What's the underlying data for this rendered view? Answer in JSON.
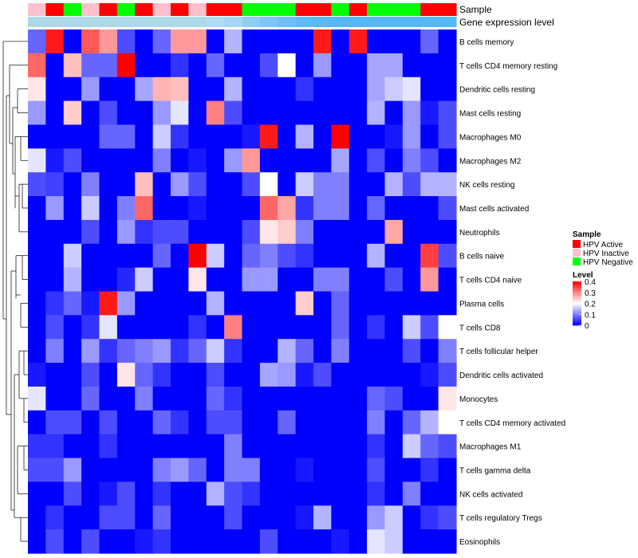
{
  "chart_data": {
    "type": "heatmap",
    "title": "",
    "annotation_tracks": [
      "Sample",
      "Gene expression level"
    ],
    "sample_groups": [
      "Inactive",
      "Active",
      "Negative",
      "Inactive",
      "Active",
      "Negative",
      "Active",
      "Inactive",
      "Active",
      "Inactive",
      "Active",
      "Active",
      "Negative",
      "Negative",
      "Negative",
      "Active",
      "Active",
      "Negative",
      "Active",
      "Negative",
      "Negative",
      "Negative",
      "Active",
      "Active"
    ],
    "sample_colors": {
      "Active": "#ff0000",
      "Inactive": "#ffc0cb",
      "Negative": "#00ff00"
    },
    "expression_track_colors": [
      "#add8e6",
      "#add8e6",
      "#add8e6",
      "#add8e6",
      "#add8e6",
      "#add8e6",
      "#add8e6",
      "#add8e6",
      "#add8e6",
      "#add8e6",
      "#b0dcf2",
      "#a6d6f4",
      "#8fcdf4",
      "#7cc6f5",
      "#6bc0f5",
      "#5cbbf6",
      "#57b9f6",
      "#55b8f6",
      "#55b8f6",
      "#55b8f6",
      "#55b8f6",
      "#55b8f6",
      "#55b8f6",
      "#55b8f6"
    ],
    "rows": [
      "B cells memory",
      "T cells CD4 memory resting",
      "Dendritic cells resting",
      "Mast cells resting",
      "Macrophages M0",
      "Macrophages M2",
      "NK cells resting",
      "Mast cells activated",
      "Neutrophils",
      "B cells naive",
      "T cells CD4 naive",
      "Plasma cells",
      "T cells CD8",
      "T cells follicular helper",
      "Dendritic cells activated",
      "Monocytes",
      "T cells CD4 memory activated",
      "Macrophages M1",
      "T cells gamma delta",
      "NK cells activated",
      "T cells regulatory  Tregs",
      "Eosinophils"
    ],
    "values": [
      [
        0.08,
        0.38,
        0.0,
        0.33,
        0.28,
        0.06,
        0.0,
        0.08,
        0.28,
        0.28,
        0.0,
        0.14,
        0.0,
        0.0,
        0.0,
        0.0,
        0.38,
        0.0,
        0.38,
        0.0,
        0.0,
        0.0,
        0.08,
        0.0
      ],
      [
        0.32,
        0.0,
        0.25,
        0.08,
        0.08,
        0.4,
        0.0,
        0.0,
        0.04,
        0.0,
        0.08,
        0.0,
        0.0,
        0.06,
        0.2,
        0.0,
        0.12,
        0.0,
        0.0,
        0.13,
        0.13,
        0.0,
        0.0,
        0.0
      ],
      [
        0.22,
        0.0,
        0.0,
        0.12,
        0.0,
        0.0,
        0.13,
        0.26,
        0.25,
        0.0,
        0.0,
        0.14,
        0.0,
        0.0,
        0.0,
        0.04,
        0.0,
        0.0,
        0.0,
        0.13,
        0.16,
        0.18,
        0.0,
        0.0
      ],
      [
        0.12,
        0.0,
        0.24,
        0.0,
        0.06,
        0.0,
        0.0,
        0.12,
        0.18,
        0.0,
        0.3,
        0.06,
        0.0,
        0.0,
        0.0,
        0.0,
        0.0,
        0.0,
        0.0,
        0.14,
        0.0,
        0.12,
        0.02,
        0.06
      ],
      [
        0.0,
        0.0,
        0.0,
        0.0,
        0.08,
        0.08,
        0.0,
        0.16,
        0.04,
        0.0,
        0.0,
        0.0,
        0.02,
        0.38,
        0.0,
        0.14,
        0.0,
        0.4,
        0.0,
        0.0,
        0.02,
        0.12,
        0.0,
        0.06
      ],
      [
        0.18,
        0.02,
        0.06,
        0.0,
        0.0,
        0.0,
        0.0,
        0.1,
        0.0,
        0.02,
        0.0,
        0.12,
        0.28,
        0.0,
        0.0,
        0.0,
        0.0,
        0.13,
        0.0,
        0.06,
        0.0,
        0.1,
        0.06,
        0.0
      ],
      [
        0.06,
        0.05,
        0.0,
        0.1,
        0.0,
        0.0,
        0.25,
        0.0,
        0.12,
        0.06,
        0.0,
        0.0,
        0.06,
        0.2,
        0.0,
        0.16,
        0.1,
        0.1,
        0.0,
        0.0,
        0.14,
        0.06,
        0.14,
        0.14
      ],
      [
        0.0,
        0.12,
        0.0,
        0.16,
        0.0,
        0.1,
        0.32,
        0.0,
        0.0,
        0.02,
        0.0,
        0.0,
        0.0,
        0.32,
        0.27,
        0.04,
        0.1,
        0.1,
        0.0,
        0.08,
        0.0,
        0.0,
        0.0,
        0.06
      ],
      [
        0.0,
        0.0,
        0.0,
        0.06,
        0.0,
        0.12,
        0.04,
        0.06,
        0.06,
        0.0,
        0.0,
        0.0,
        0.06,
        0.22,
        0.24,
        0.1,
        0.0,
        0.0,
        0.0,
        0.0,
        0.27,
        0.0,
        0.0,
        0.0
      ],
      [
        0.0,
        0.0,
        0.16,
        0.0,
        0.0,
        0.0,
        0.0,
        0.08,
        0.0,
        0.4,
        0.16,
        0.0,
        0.08,
        0.1,
        0.06,
        0.04,
        0.0,
        0.0,
        0.0,
        0.14,
        0.0,
        0.0,
        0.35,
        0.06
      ],
      [
        0.0,
        0.0,
        0.14,
        0.0,
        0.0,
        0.03,
        0.16,
        0.0,
        0.0,
        0.22,
        0.0,
        0.0,
        0.12,
        0.12,
        0.0,
        0.0,
        0.1,
        0.1,
        0.0,
        0.0,
        0.06,
        0.0,
        0.28,
        0.0
      ],
      [
        0.0,
        0.04,
        0.08,
        0.02,
        0.38,
        0.12,
        0.0,
        0.0,
        0.0,
        0.0,
        0.14,
        0.0,
        0.0,
        0.0,
        0.0,
        0.24,
        0.0,
        0.08,
        0.0,
        0.0,
        0.0,
        0.0,
        0.0,
        0.0
      ],
      [
        0.0,
        0.06,
        0.0,
        0.04,
        0.18,
        0.0,
        0.0,
        0.0,
        0.0,
        0.04,
        0.0,
        0.3,
        0.0,
        0.0,
        0.0,
        0.0,
        0.0,
        0.08,
        0.0,
        0.04,
        0.0,
        0.16,
        0.06,
        0.2
      ],
      [
        0.0,
        0.1,
        0.0,
        0.12,
        0.04,
        0.08,
        0.1,
        0.12,
        0.04,
        0.08,
        0.16,
        0.04,
        0.0,
        0.0,
        0.14,
        0.08,
        0.0,
        0.1,
        0.0,
        0.0,
        0.0,
        0.06,
        0.0,
        0.1
      ],
      [
        0.02,
        0.0,
        0.0,
        0.06,
        0.0,
        0.22,
        0.08,
        0.04,
        0.0,
        0.0,
        0.06,
        0.0,
        0.0,
        0.13,
        0.12,
        0.02,
        0.06,
        0.0,
        0.0,
        0.0,
        0.0,
        0.0,
        0.02,
        0.06
      ],
      [
        0.18,
        0.0,
        0.0,
        0.08,
        0.0,
        0.0,
        0.1,
        0.0,
        0.0,
        0.0,
        0.08,
        0.04,
        0.0,
        0.0,
        0.0,
        0.0,
        0.0,
        0.0,
        0.0,
        0.08,
        0.06,
        0.0,
        0.0,
        0.22
      ],
      [
        0.0,
        0.06,
        0.06,
        0.0,
        0.06,
        0.0,
        0.0,
        0.08,
        0.04,
        0.0,
        0.06,
        0.06,
        0.0,
        0.0,
        0.08,
        0.0,
        0.0,
        0.0,
        0.0,
        0.1,
        0.0,
        0.08,
        0.14,
        0.2
      ],
      [
        0.04,
        0.04,
        0.0,
        0.0,
        0.04,
        0.0,
        0.0,
        0.0,
        0.0,
        0.0,
        0.0,
        0.1,
        0.0,
        0.0,
        0.0,
        0.0,
        0.0,
        0.0,
        0.0,
        0.04,
        0.0,
        0.16,
        0.08,
        0.06
      ],
      [
        0.06,
        0.06,
        0.12,
        0.0,
        0.0,
        0.0,
        0.0,
        0.1,
        0.12,
        0.08,
        0.0,
        0.1,
        0.1,
        0.0,
        0.0,
        0.02,
        0.0,
        0.0,
        0.0,
        0.06,
        0.0,
        0.0,
        0.04,
        0.0
      ],
      [
        0.0,
        0.0,
        0.06,
        0.0,
        0.02,
        0.06,
        0.0,
        0.04,
        0.0,
        0.0,
        0.14,
        0.06,
        0.04,
        0.0,
        0.0,
        0.0,
        0.0,
        0.0,
        0.0,
        0.04,
        0.0,
        0.1,
        0.0,
        0.0
      ],
      [
        0.0,
        0.04,
        0.0,
        0.0,
        0.06,
        0.06,
        0.0,
        0.08,
        0.0,
        0.0,
        0.0,
        0.06,
        0.0,
        0.0,
        0.0,
        0.02,
        0.14,
        0.0,
        0.0,
        0.12,
        0.16,
        0.0,
        0.04,
        0.06
      ],
      [
        0.0,
        0.06,
        0.0,
        0.06,
        0.0,
        0.0,
        0.02,
        0.04,
        0.0,
        0.0,
        0.0,
        0.0,
        0.0,
        0.06,
        0.0,
        0.0,
        0.0,
        0.02,
        0.0,
        0.18,
        0.16,
        0.0,
        0.0,
        0.0
      ]
    ],
    "color_scale": {
      "min": 0,
      "max": 0.4,
      "colors": [
        "#0000ff",
        "#ffffff",
        "#ff0000"
      ]
    },
    "legend": {
      "sample_title": "Sample",
      "sample_entries": [
        {
          "label": "HPV Active",
          "color": "#ff0000"
        },
        {
          "label": "HPV Inactive",
          "color": "#ffc0cb"
        },
        {
          "label": "HPV Negative",
          "color": "#00ff00"
        }
      ],
      "level_title": "Level",
      "level_ticks": [
        "0.4",
        "0.3",
        "0.2",
        "0.1",
        "0"
      ],
      "level_tick_values": [
        0.4,
        0.3,
        0.2,
        0.1,
        0
      ]
    },
    "row_dendrogram": true,
    "legend_position": "right"
  }
}
